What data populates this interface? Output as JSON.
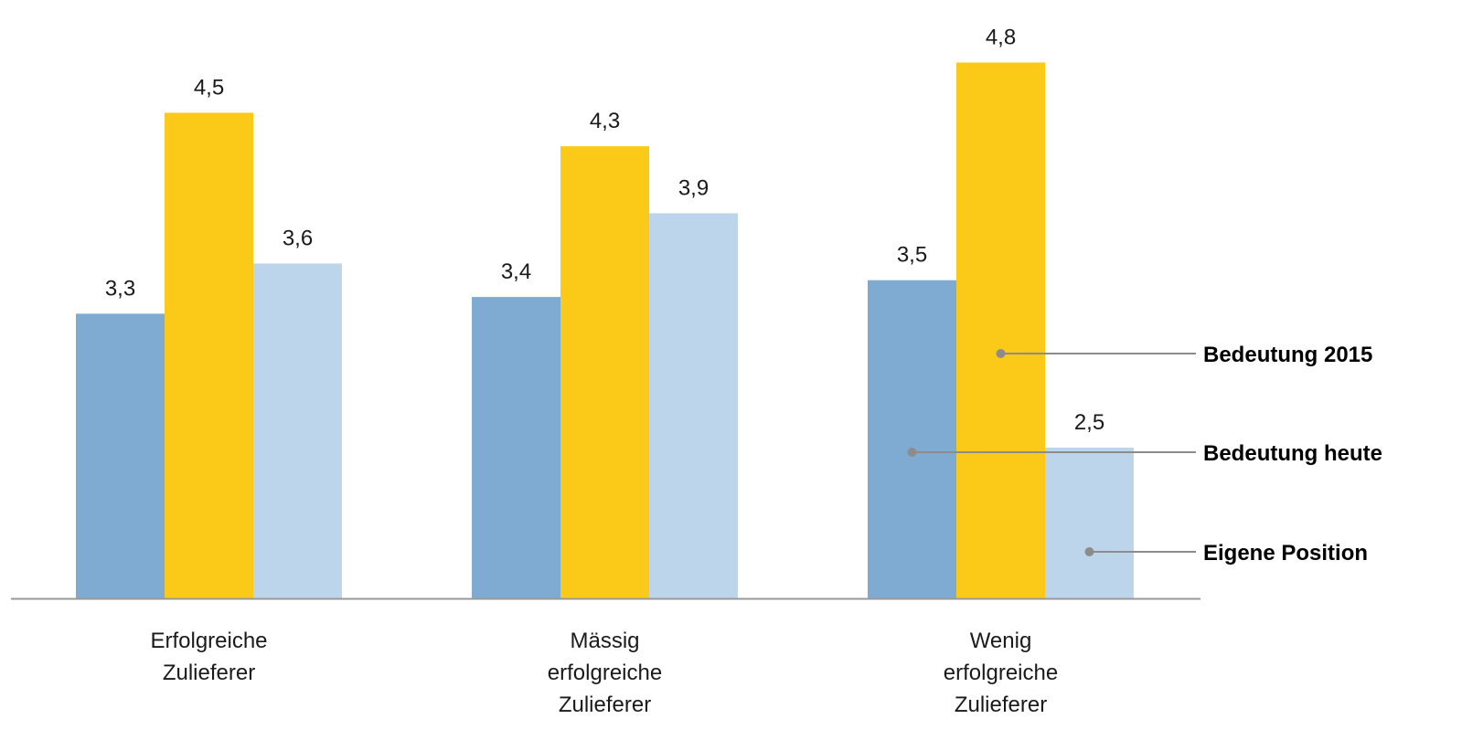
{
  "chart_data": {
    "type": "bar",
    "categories": [
      [
        "Erfolgreiche",
        "Zulieferer"
      ],
      [
        "Mässig",
        "erfolgreiche",
        "Zulieferer"
      ],
      [
        "Wenig",
        "erfolgreiche",
        "Zulieferer"
      ]
    ],
    "series": [
      {
        "name": "Bedeutung heute",
        "color": "#7FABD3",
        "values": [
          3.3,
          3.4,
          3.5
        ],
        "labels": [
          "3,3",
          "3,4",
          "3,5"
        ]
      },
      {
        "name": "Bedeutung 2015",
        "color": "#FBC918",
        "values": [
          4.5,
          4.3,
          4.8
        ],
        "labels": [
          "4,5",
          "4,3",
          "4,8"
        ]
      },
      {
        "name": "Eigene Position",
        "color": "#BDD5EA",
        "values": [
          3.6,
          3.9,
          2.5
        ],
        "labels": [
          "3,6",
          "3,9",
          "2,5"
        ]
      }
    ],
    "ylim": [
      1.6,
      5.0
    ],
    "grid": false,
    "legend": "right, with leader lines to the bars of the last category",
    "legend_order": [
      "Bedeutung 2015",
      "Bedeutung heute",
      "Eigene Position"
    ],
    "axis_color": "#999999",
    "leader_color": "#8C8C8C"
  }
}
